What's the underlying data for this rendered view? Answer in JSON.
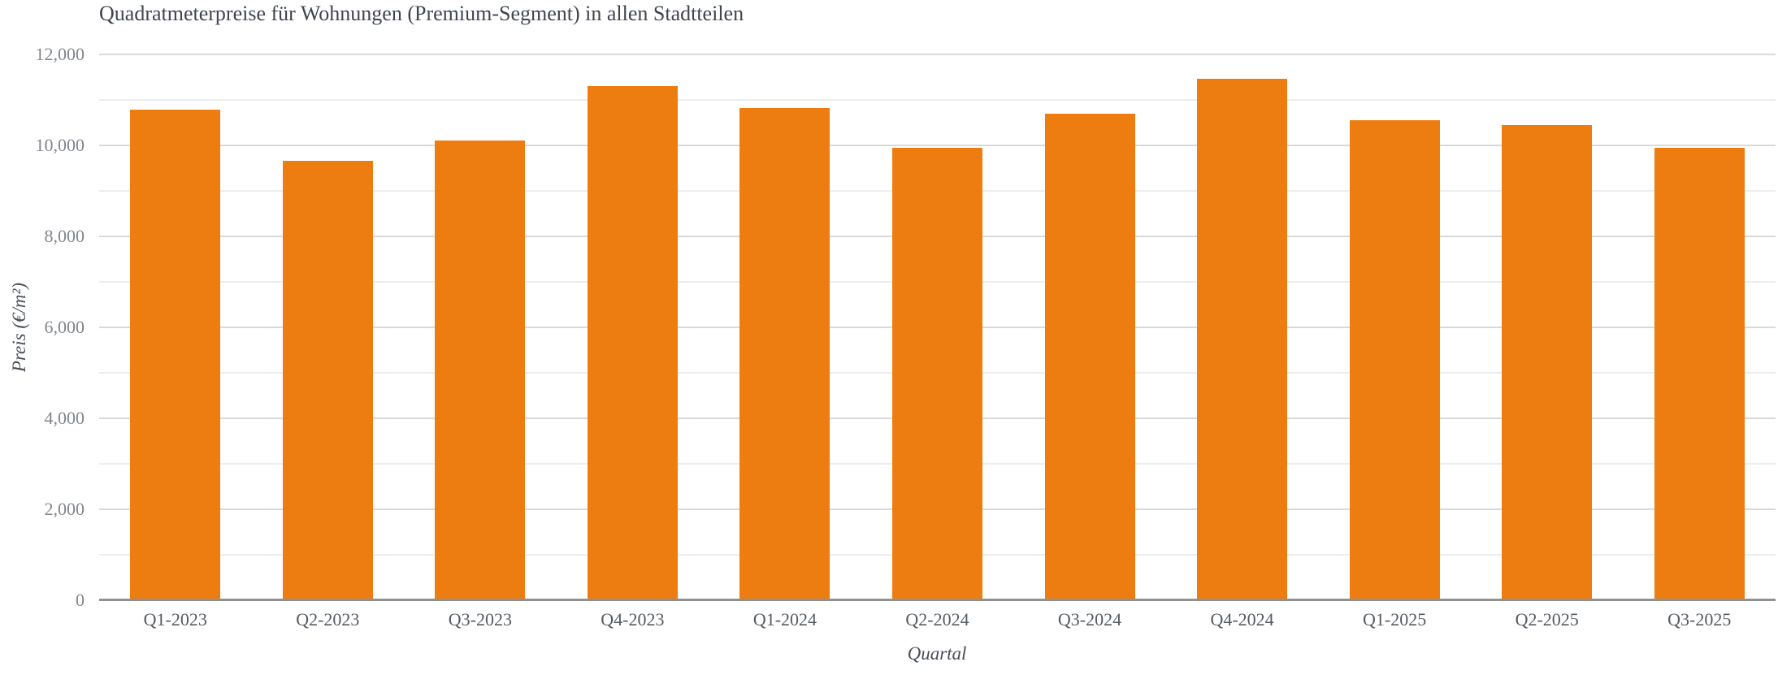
{
  "chart_data": {
    "type": "bar",
    "title": "Quadratmeterpreise für Wohnungen (Premium-Segment) in allen Stadtteilen",
    "xlabel": "Quartal",
    "ylabel": "Preis (€/m²)",
    "categories": [
      "Q1-2023",
      "Q2-2023",
      "Q3-2023",
      "Q4-2023",
      "Q1-2024",
      "Q2-2024",
      "Q3-2024",
      "Q4-2024",
      "Q1-2025",
      "Q2-2025",
      "Q3-2025"
    ],
    "values": [
      10780,
      9660,
      10100,
      11300,
      10820,
      9940,
      10700,
      11470,
      10560,
      10450,
      9940
    ],
    "ylim": [
      0,
      12000
    ],
    "ytick_major_step": 2000,
    "ytick_minor_step": 1000,
    "ytick_labels": [
      "0",
      "2,000",
      "4,000",
      "6,000",
      "8,000",
      "10,000",
      "12,000"
    ],
    "grid": true,
    "legend": "none",
    "bar_color": "#ee7d11"
  },
  "colors": {
    "bar": "#ee7d11",
    "title_text": "#40454e",
    "x_tick_text": "#555b63",
    "y_tick_text": "#81868d",
    "axis_title_text": "#4a4f57",
    "grid_major": "#d9d9d9",
    "grid_minor": "#ededed",
    "baseline": "#919191",
    "background": "#ffffff"
  }
}
